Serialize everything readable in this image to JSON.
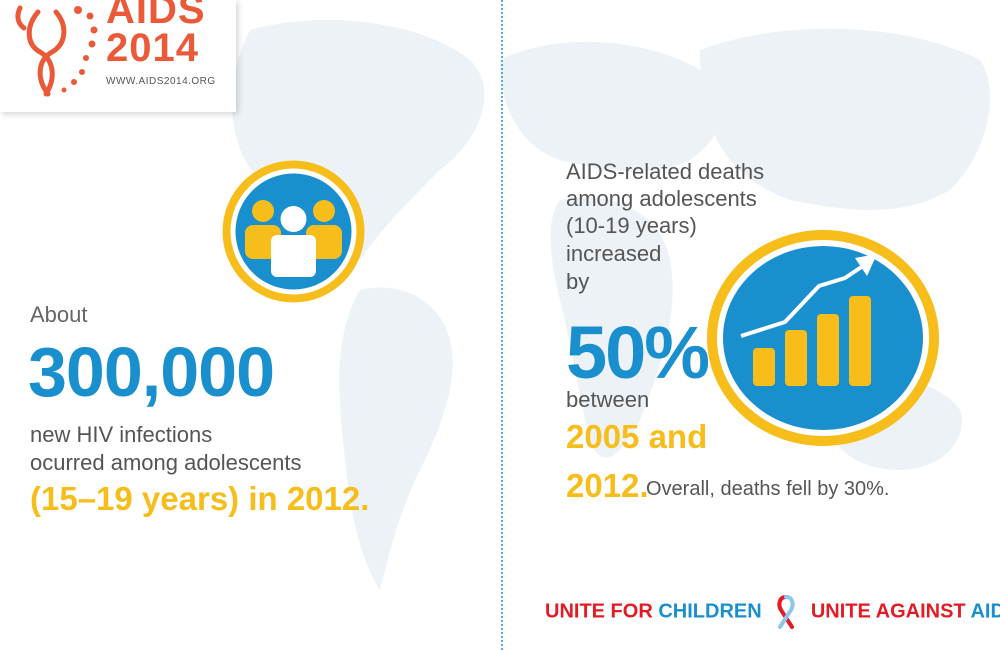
{
  "logo": {
    "line1": "AIDS",
    "line2": "2014",
    "url": "WWW.AIDS2014.ORG"
  },
  "left": {
    "about": "About",
    "number": "300,000",
    "line1": "new HIV infections",
    "line2": "ocurred among adolescents",
    "highlight": "(15–19 years) in 2012."
  },
  "right": {
    "line1": "AIDS-related deaths",
    "line2": "among adolescents",
    "line3": "(10-19 years)",
    "line4": "increased",
    "line5": "by",
    "percent": "50%",
    "between": "between",
    "year_a": "2005 and",
    "year_b": "2012.",
    "overall": "Overall, deaths fell by 30%."
  },
  "footer": {
    "unite_a": "UNITE FOR",
    "children": "CHILDREN",
    "unite_b": "UNITE AGAINST",
    "aids": "AIDS"
  },
  "colors": {
    "blue": "#1a8fce",
    "yellow": "#f6bd1b",
    "orange": "#ea5a38",
    "red": "#e21b25",
    "map": "#edf2f7"
  },
  "icons": [
    "people-icon",
    "growth-chart-icon",
    "aids-ribbon-icon",
    "aids-logo-mark-icon"
  ]
}
